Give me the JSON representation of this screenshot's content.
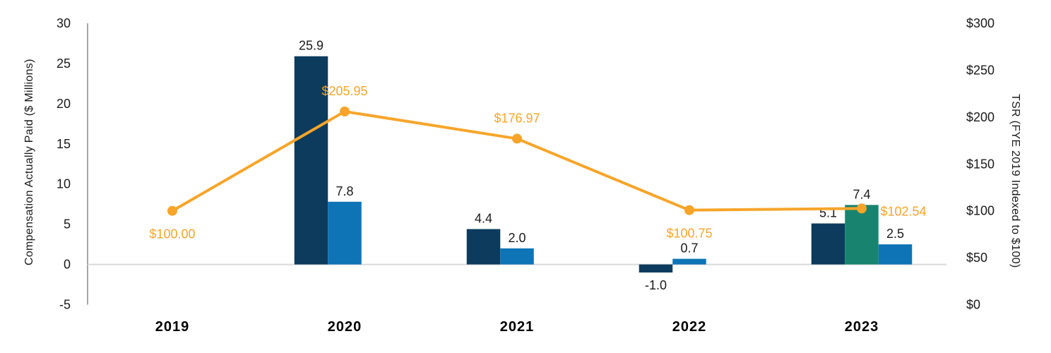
{
  "chart_data": {
    "type": "bar",
    "subtype": "grouped-bar-with-line-combo",
    "categories": [
      "2019",
      "2020",
      "2021",
      "2022",
      "2023"
    ],
    "bar_series": [
      {
        "name": "dark-navy-bars",
        "color": "#0d3b5e",
        "values": [
          null,
          25.9,
          4.4,
          -1.0,
          5.1
        ],
        "labels": [
          "",
          "25.9",
          "4.4",
          "-1.0",
          "5.1"
        ]
      },
      {
        "name": "teal-bars",
        "color": "#18846f",
        "values": [
          null,
          null,
          null,
          null,
          7.4
        ],
        "labels": [
          "",
          "",
          "",
          "",
          "7.4"
        ]
      },
      {
        "name": "light-blue-bars",
        "color": "#0e74b5",
        "values": [
          null,
          7.8,
          2.0,
          0.7,
          2.5
        ],
        "labels": [
          "",
          "7.8",
          "2.0",
          "0.7",
          "2.5"
        ]
      }
    ],
    "line_series": {
      "name": "tsr-line",
      "color": "#f6a52a",
      "values": [
        100.0,
        205.95,
        176.97,
        100.75,
        102.54
      ],
      "labels": [
        "$100.00",
        "$205.95",
        "$176.97",
        "$100.75",
        "$102.54"
      ],
      "label_placement": [
        "below",
        "above",
        "above",
        "below",
        "right"
      ]
    },
    "left_axis": {
      "title": "Compensation Actually Paid ($ Millions)",
      "min": -5,
      "max": 30,
      "ticks": [
        {
          "value": 30,
          "label": "30"
        },
        {
          "value": 25,
          "label": "25"
        },
        {
          "value": 20,
          "label": "20"
        },
        {
          "value": 15,
          "label": "15"
        },
        {
          "value": 10,
          "label": "10"
        },
        {
          "value": 5,
          "label": "5"
        },
        {
          "value": 0,
          "label": "0"
        },
        {
          "value": -5,
          "label": "-5"
        }
      ]
    },
    "right_axis": {
      "title": "TSR (FYE 2019 Indexed to $100)",
      "min": 0,
      "max": 300,
      "ticks": [
        {
          "value": 300,
          "label": "$300"
        },
        {
          "value": 250,
          "label": "$250"
        },
        {
          "value": 200,
          "label": "$200"
        },
        {
          "value": 150,
          "label": "$150"
        },
        {
          "value": 100,
          "label": "$100"
        },
        {
          "value": 50,
          "label": "$50"
        },
        {
          "value": 0,
          "label": "$0"
        }
      ]
    },
    "colors": {
      "zero_gridline": "#d9d9d9",
      "axis_line": "#a6a6a6",
      "label_text": "#1a1a1a",
      "year_text": "#000000"
    },
    "grid": "zero-line-only",
    "legend": "none"
  }
}
